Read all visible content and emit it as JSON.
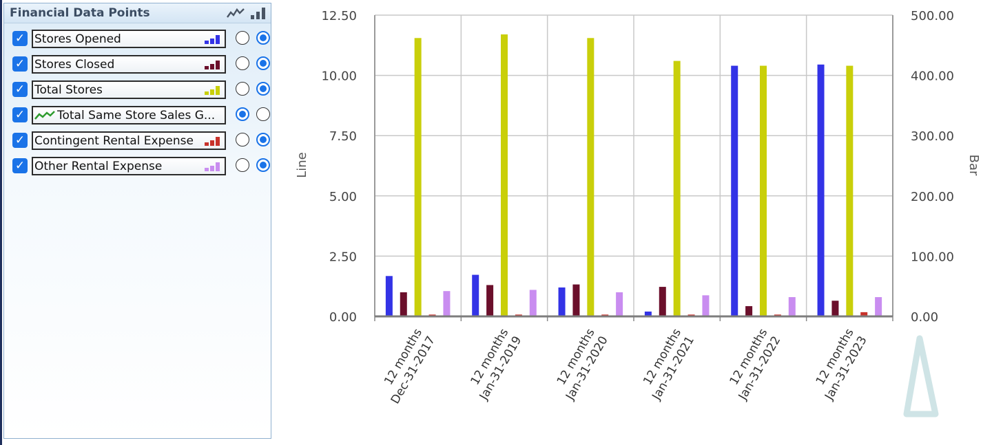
{
  "panel": {
    "title": "Financial Data Points",
    "items": [
      {
        "label": "Stores Opened",
        "color": "#3333e6",
        "type": "bar"
      },
      {
        "label": "Stores Closed",
        "color": "#6b0f2b",
        "type": "bar"
      },
      {
        "label": "Total Stores",
        "color": "#c9cf0a",
        "type": "bar"
      },
      {
        "label": "Total Same Store Sales G...",
        "color": "#2d9b2d",
        "type": "line"
      },
      {
        "label": "Contingent Rental Expense",
        "color": "#c8322b",
        "type": "bar"
      },
      {
        "label": "Other Rental Expense",
        "color": "#c98df0",
        "type": "bar"
      }
    ]
  },
  "chart_data": {
    "type": "bar",
    "categories": [
      [
        "12 months",
        "Dec-31-2017"
      ],
      [
        "12 months",
        "Jan-31-2019"
      ],
      [
        "12 months",
        "Jan-31-2020"
      ],
      [
        "12 months",
        "Jan-31-2021"
      ],
      [
        "12 months",
        "Jan-31-2022"
      ],
      [
        "12 months",
        "Jan-31-2023"
      ]
    ],
    "y_left": {
      "label": "Line",
      "ticks": [
        "0.00",
        "2.50",
        "5.00",
        "7.50",
        "10.00",
        "12.50"
      ],
      "range": [
        0,
        12.5
      ]
    },
    "y_right": {
      "label": "Bar",
      "ticks": [
        "0.00",
        "100.00",
        "200.00",
        "300.00",
        "400.00",
        "500.00"
      ],
      "range": [
        0,
        500
      ]
    },
    "grid": true,
    "series": [
      {
        "name": "Stores Opened",
        "color": "#3333e6",
        "values": [
          67,
          69,
          48,
          8,
          416,
          418
        ]
      },
      {
        "name": "Stores Closed",
        "color": "#6b0f2b",
        "values": [
          40,
          52,
          53,
          49,
          17,
          26
        ]
      },
      {
        "name": "Total Stores",
        "color": "#c9cf0a",
        "values": [
          462,
          468,
          462,
          424,
          416,
          416
        ]
      },
      {
        "name": "Contingent Rental Expense",
        "color": "#c8322b",
        "values": [
          3,
          3,
          3,
          3,
          3,
          7
        ]
      },
      {
        "name": "Other Rental Expense",
        "color": "#c98df0",
        "values": [
          42,
          44,
          40,
          35,
          32,
          32
        ]
      }
    ]
  }
}
